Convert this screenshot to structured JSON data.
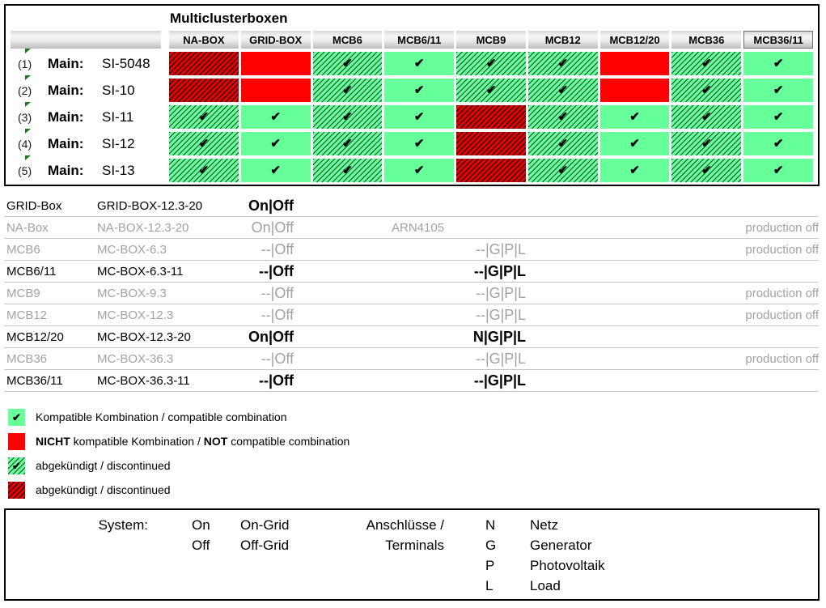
{
  "title": "Multiclusterboxen",
  "check_glyph": "✔",
  "colors": {
    "compatible_green": "#66ff99",
    "not_compatible_red": "#fe0000",
    "discontinued_red_base": "#e60000",
    "hatch_black": "#000000",
    "marker_green": "#1e7a1e",
    "dimmed_gray": "#a2a2a2"
  },
  "matrix": {
    "columns": [
      "NA-BOX",
      "GRID-BOX",
      "MCB6",
      "MCB6/11",
      "MCB9",
      "MCB12",
      "MCB12/20",
      "MCB36",
      "MCB36/11"
    ],
    "rows": [
      {
        "index": "(1)",
        "prefix": "Main:",
        "model": "SI-5048",
        "cells": [
          "nok-disc",
          "nok",
          "ok-disc",
          "ok",
          "ok-disc",
          "ok-disc",
          "nok",
          "ok-disc",
          "ok"
        ]
      },
      {
        "index": "(2)",
        "prefix": "Main:",
        "model": "SI-10",
        "cells": [
          "nok-disc",
          "nok",
          "ok-disc",
          "ok",
          "ok-disc",
          "ok-disc",
          "nok",
          "ok-disc",
          "ok"
        ]
      },
      {
        "index": "(3)",
        "prefix": "Main:",
        "model": "SI-11",
        "cells": [
          "ok-disc",
          "ok",
          "ok-disc",
          "ok",
          "nok-disc",
          "ok-disc",
          "ok",
          "ok-disc",
          "ok"
        ]
      },
      {
        "index": "(4)",
        "prefix": "Main:",
        "model": "SI-12",
        "cells": [
          "ok-disc",
          "ok",
          "ok-disc",
          "ok",
          "nok-disc",
          "ok-disc",
          "ok",
          "ok-disc",
          "ok"
        ]
      },
      {
        "index": "(5)",
        "prefix": "Main:",
        "model": "SI-13",
        "cells": [
          "ok-disc",
          "ok",
          "ok-disc",
          "ok",
          "nok-disc",
          "ok-disc",
          "ok",
          "ok-disc",
          "ok"
        ]
      }
    ],
    "cell_states": {
      "ok": "compatible",
      "nok": "not compatible",
      "ok-disc": "compatible, discontinued",
      "nok-disc": "not compatible, discontinued"
    }
  },
  "boxes": [
    {
      "name": "GRID-Box",
      "model": "GRID-BOX-12.3-20",
      "system": "On|Off",
      "arn": "",
      "terminals": "",
      "note": "",
      "dimmed": false
    },
    {
      "name": "NA-Box",
      "model": "NA-BOX-12.3-20",
      "system": "On|Off",
      "arn": "ARN4105",
      "terminals": "",
      "note": "production off",
      "dimmed": true
    },
    {
      "name": "MCB6",
      "model": "MC-BOX-6.3",
      "system": "--|Off",
      "arn": "",
      "terminals": "--|G|P|L",
      "note": "production off",
      "dimmed": true
    },
    {
      "name": "MCB6/11",
      "model": "MC-BOX-6.3-11",
      "system": "--|Off",
      "arn": "",
      "terminals": "--|G|P|L",
      "note": "",
      "dimmed": false
    },
    {
      "name": "MCB9",
      "model": "MC-BOX-9.3",
      "system": "--|Off",
      "arn": "",
      "terminals": "--|G|P|L",
      "note": "production off",
      "dimmed": true
    },
    {
      "name": "MCB12",
      "model": "MC-BOX-12.3",
      "system": "--|Off",
      "arn": "",
      "terminals": "--|G|P|L",
      "note": "production off",
      "dimmed": true
    },
    {
      "name": "MCB12/20",
      "model": "MC-BOX-12.3-20",
      "system": "On|Off",
      "arn": "",
      "terminals": "N|G|P|L",
      "note": "",
      "dimmed": false
    },
    {
      "name": "MCB36",
      "model": "MC-BOX-36.3",
      "system": "--|Off",
      "arn": "",
      "terminals": "--|G|P|L",
      "note": "production off",
      "dimmed": true
    },
    {
      "name": "MCB36/11",
      "model": "MC-BOX-36.3-11",
      "system": "--|Off",
      "arn": "",
      "terminals": "--|G|P|L",
      "note": "",
      "dimmed": false
    }
  ],
  "legend": [
    {
      "swatch": "ok",
      "parts": [
        {
          "t": "Kompatible Kombination / compatible combination",
          "b": false
        }
      ]
    },
    {
      "swatch": "nok",
      "parts": [
        {
          "t": "NICHT",
          "b": true
        },
        {
          "t": " kompatible Kombination / ",
          "b": false
        },
        {
          "t": "NOT",
          "b": true
        },
        {
          "t": " compatible combination",
          "b": false
        }
      ]
    },
    {
      "swatch": "ok-disc",
      "parts": [
        {
          "t": "abgekündigt / discontinued",
          "b": false
        }
      ]
    },
    {
      "swatch": "nok-disc",
      "parts": [
        {
          "t": "abgekündigt / discontinued",
          "b": false
        }
      ]
    }
  ],
  "footer": {
    "system_label": "System:",
    "on_values": [
      "On",
      "Off"
    ],
    "grid_values": [
      "On-Grid",
      "Off-Grid"
    ],
    "terminals_label": [
      "Anschlüsse /",
      "Terminals"
    ],
    "codes": [
      "N",
      "G",
      "P",
      "L"
    ],
    "code_labels": [
      "Netz",
      "Generator",
      "Photovoltaik",
      "Load"
    ]
  }
}
